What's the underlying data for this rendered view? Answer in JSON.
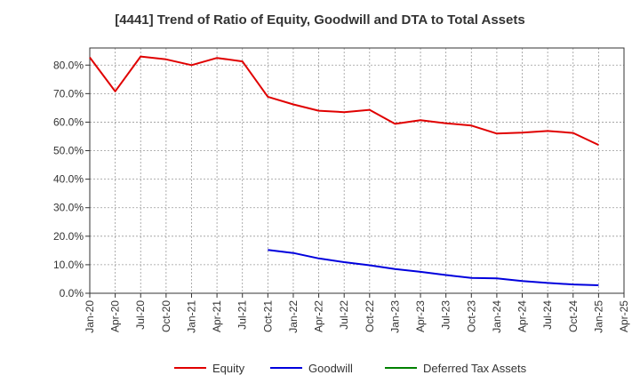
{
  "chart_data": {
    "type": "line",
    "title": "[4441]  Trend of Ratio of Equity, Goodwill and DTA to Total Assets",
    "xlabel": "",
    "ylabel": "",
    "ylim": [
      0,
      86
    ],
    "grid": true,
    "legend_position": "bottom",
    "x_ticks": [
      "Jan-20",
      "Apr-20",
      "Jul-20",
      "Oct-20",
      "Jan-21",
      "Apr-21",
      "Jul-21",
      "Oct-21",
      "Jan-22",
      "Apr-22",
      "Jul-22",
      "Oct-22",
      "Jan-23",
      "Apr-23",
      "Jul-23",
      "Oct-23",
      "Jan-24",
      "Apr-24",
      "Jul-24",
      "Oct-24",
      "Jan-25",
      "Apr-25"
    ],
    "y_ticks": [
      {
        "value": 0,
        "label": "0.0%"
      },
      {
        "value": 10,
        "label": "10.0%"
      },
      {
        "value": 20,
        "label": "20.0%"
      },
      {
        "value": 30,
        "label": "30.0%"
      },
      {
        "value": 40,
        "label": "40.0%"
      },
      {
        "value": 50,
        "label": "50.0%"
      },
      {
        "value": 60,
        "label": "60.0%"
      },
      {
        "value": 70,
        "label": "70.0%"
      },
      {
        "value": 80,
        "label": "80.0%"
      }
    ],
    "series": [
      {
        "name": "Equity",
        "color": "#e00000",
        "values": [
          82.7,
          70.8,
          83.0,
          82.0,
          80.0,
          82.5,
          81.3,
          68.9,
          66.2,
          64.0,
          63.5,
          64.3,
          59.4,
          60.7,
          59.6,
          58.8,
          56.0,
          56.3,
          56.9,
          56.2,
          52.0,
          null
        ]
      },
      {
        "name": "Goodwill",
        "color": "#0000dd",
        "values": [
          null,
          null,
          null,
          null,
          null,
          null,
          null,
          15.2,
          14.1,
          12.2,
          10.9,
          9.8,
          8.5,
          7.5,
          6.4,
          5.4,
          5.2,
          4.3,
          3.6,
          3.1,
          2.8,
          null
        ]
      },
      {
        "name": "Deferred Tax Assets",
        "color": "#008000",
        "values": [
          null,
          null,
          null,
          null,
          null,
          null,
          null,
          null,
          null,
          null,
          null,
          null,
          null,
          null,
          null,
          null,
          null,
          null,
          null,
          null,
          null,
          null
        ]
      }
    ]
  }
}
